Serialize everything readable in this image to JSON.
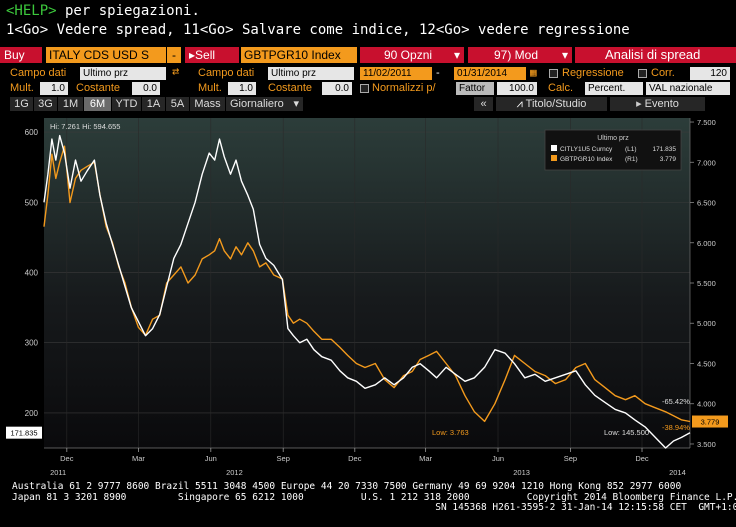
{
  "help": {
    "tag": "<HELP>",
    "text": " per spiegazioni."
  },
  "command_line": "1<Go> Vedere spread, 11<Go> Salvare come indice, 12<Go> vedere regressione",
  "toolbar": {
    "buy_label": "Buy",
    "security1": "ITALY CDS USD S",
    "minus_label": "-",
    "sell_label": "Sell",
    "security2": "GBTPGR10 Index",
    "options_label": "90 Opzni",
    "mod_label": "97) Mod",
    "analysis_label": "Analisi di spread"
  },
  "row1": {
    "campo_dati_label": "Campo dati",
    "campo_dati_value": "Ultimo prz",
    "swap_icon": "swap-arrows-icon",
    "campo_dati2_label": "Campo dati",
    "campo_dati2_value": "Ultimo prz",
    "start_date": "11/02/2011",
    "date_sep": "-",
    "end_date": "01/31/2014",
    "regressione_label": "Regressione",
    "corr_label": "Corr.",
    "corr_value": "120"
  },
  "row2": {
    "mult_label": "Mult.",
    "mult_value": "1.0",
    "costante_label": "Costante",
    "costante_value": "0.0",
    "mult2_label": "Mult.",
    "mult2_value": "1.0",
    "costante2_label": "Costante",
    "costante2_value": "0.0",
    "normalizzi_label": "Normalizzi p/",
    "fattor_label": "Fattor",
    "fattor_value": "100.0",
    "calc_label": "Calc.",
    "calc_value": "Percent.",
    "val_value": "VAL nazionale"
  },
  "tabs": [
    "1G",
    "3G",
    "1M",
    "6M",
    "YTD",
    "1A",
    "5A",
    "Mass",
    "Giornaliero"
  ],
  "active_tab": "6M",
  "toolbar2": {
    "back_label": "«",
    "titolo_label": "Titolo/Studio",
    "evento_label": "Evento"
  },
  "colors": {
    "cds": "#ffffff",
    "btp": "#f39a1d",
    "accent_red": "#c8102e",
    "background": "#000000"
  },
  "chart_data": {
    "type": "line",
    "x_range": [
      "2011-11-02",
      "2014-01-31"
    ],
    "ylim_left": [
      150,
      620
    ],
    "ylim_right": [
      3.45,
      7.55
    ],
    "left_ticks": [
      200,
      300,
      400,
      500,
      600
    ],
    "right_ticks": [
      3.5,
      4.0,
      4.5,
      5.0,
      5.5,
      6.0,
      6.5,
      7.0,
      7.5
    ],
    "right_tick_labels": [
      "3.500",
      "4.000",
      "4.500",
      "5.000",
      "5.500",
      "6.000",
      "6.500",
      "7.000",
      "7.500"
    ],
    "month_labels": [
      {
        "date": "2011-12-01",
        "label": "Dec"
      },
      {
        "date": "2012-03-01",
        "label": "Mar"
      },
      {
        "date": "2012-06-01",
        "label": "Jun"
      },
      {
        "date": "2012-09-01",
        "label": "Sep"
      },
      {
        "date": "2012-12-01",
        "label": "Dec"
      },
      {
        "date": "2013-03-01",
        "label": "Mar"
      },
      {
        "date": "2013-06-01",
        "label": "Jun"
      },
      {
        "date": "2013-09-01",
        "label": "Sep"
      },
      {
        "date": "2013-12-01",
        "label": "Dec"
      }
    ],
    "year_labels": [
      {
        "date": "2011-11-20",
        "label": "2011"
      },
      {
        "date": "2012-07-01",
        "label": "2012"
      },
      {
        "date": "2013-07-01",
        "label": "2013"
      },
      {
        "date": "2014-01-15",
        "label": "2014"
      }
    ],
    "legend": {
      "title": "Ultimo prz",
      "entries": [
        {
          "name": "CITLY1U5 Curncy",
          "axis": "(L1)",
          "last": "171.835"
        },
        {
          "name": "GBTPGR10 Index",
          "axis": "(R1)",
          "last": "3.779"
        }
      ]
    },
    "annotations": {
      "hi_text": "Hi: 7.261 Hi: 594.655",
      "low_cds": "Low: 145.500",
      "low_btp": "Low: 3.763",
      "pct_upper": "-65.42%",
      "pct_lower": "-38.94%",
      "last_left": "171.835",
      "last_right": "3.779"
    },
    "series": [
      {
        "name": "CITLY1U5 Curncy",
        "axis": "left",
        "points": [
          [
            "2011-11-02",
            500
          ],
          [
            "2011-11-07",
            540
          ],
          [
            "2011-11-12",
            590
          ],
          [
            "2011-11-17",
            560
          ],
          [
            "2011-11-22",
            595
          ],
          [
            "2011-11-28",
            570
          ],
          [
            "2011-12-05",
            520
          ],
          [
            "2011-12-12",
            560
          ],
          [
            "2011-12-19",
            530
          ],
          [
            "2011-12-27",
            545
          ],
          [
            "2012-01-05",
            560
          ],
          [
            "2012-01-12",
            510
          ],
          [
            "2012-01-20",
            470
          ],
          [
            "2012-01-28",
            440
          ],
          [
            "2012-02-05",
            410
          ],
          [
            "2012-02-13",
            380
          ],
          [
            "2012-02-21",
            350
          ],
          [
            "2012-03-01",
            330
          ],
          [
            "2012-03-10",
            310
          ],
          [
            "2012-03-19",
            320
          ],
          [
            "2012-03-28",
            340
          ],
          [
            "2012-04-06",
            380
          ],
          [
            "2012-04-15",
            420
          ],
          [
            "2012-04-24",
            440
          ],
          [
            "2012-05-03",
            470
          ],
          [
            "2012-05-12",
            500
          ],
          [
            "2012-05-21",
            540
          ],
          [
            "2012-05-30",
            570
          ],
          [
            "2012-06-06",
            560
          ],
          [
            "2012-06-12",
            590
          ],
          [
            "2012-06-18",
            565
          ],
          [
            "2012-06-26",
            540
          ],
          [
            "2012-07-03",
            560
          ],
          [
            "2012-07-10",
            530
          ],
          [
            "2012-07-18",
            510
          ],
          [
            "2012-07-25",
            490
          ],
          [
            "2012-08-02",
            440
          ],
          [
            "2012-08-10",
            420
          ],
          [
            "2012-08-20",
            410
          ],
          [
            "2012-08-31",
            390
          ],
          [
            "2012-09-07",
            320
          ],
          [
            "2012-09-14",
            310
          ],
          [
            "2012-09-22",
            300
          ],
          [
            "2012-10-01",
            305
          ],
          [
            "2012-10-10",
            290
          ],
          [
            "2012-10-20",
            280
          ],
          [
            "2012-11-01",
            275
          ],
          [
            "2012-11-12",
            260
          ],
          [
            "2012-11-22",
            250
          ],
          [
            "2012-12-03",
            245
          ],
          [
            "2012-12-14",
            235
          ],
          [
            "2012-12-27",
            240
          ],
          [
            "2013-01-08",
            250
          ],
          [
            "2013-01-20",
            240
          ],
          [
            "2013-02-01",
            250
          ],
          [
            "2013-02-12",
            265
          ],
          [
            "2013-02-22",
            270
          ],
          [
            "2013-03-05",
            260
          ],
          [
            "2013-03-15",
            250
          ],
          [
            "2013-03-27",
            265
          ],
          [
            "2013-04-08",
            255
          ],
          [
            "2013-04-20",
            245
          ],
          [
            "2013-05-02",
            250
          ],
          [
            "2013-05-15",
            265
          ],
          [
            "2013-05-28",
            290
          ],
          [
            "2013-06-10",
            285
          ],
          [
            "2013-06-22",
            270
          ],
          [
            "2013-07-05",
            250
          ],
          [
            "2013-07-18",
            255
          ],
          [
            "2013-07-31",
            245
          ],
          [
            "2013-08-13",
            250
          ],
          [
            "2013-08-26",
            255
          ],
          [
            "2013-09-08",
            260
          ],
          [
            "2013-09-20",
            240
          ],
          [
            "2013-10-02",
            225
          ],
          [
            "2013-10-15",
            215
          ],
          [
            "2013-10-28",
            205
          ],
          [
            "2013-11-10",
            200
          ],
          [
            "2013-11-22",
            190
          ],
          [
            "2013-12-05",
            180
          ],
          [
            "2013-12-18",
            165
          ],
          [
            "2013-12-31",
            150
          ],
          [
            "2014-01-10",
            160
          ],
          [
            "2014-01-20",
            165
          ],
          [
            "2014-01-31",
            171.835
          ]
        ]
      },
      {
        "name": "GBTPGR10 Index",
        "axis": "right",
        "points": [
          [
            "2011-11-02",
            6.2
          ],
          [
            "2011-11-07",
            6.6
          ],
          [
            "2011-11-12",
            7.1
          ],
          [
            "2011-11-17",
            6.8
          ],
          [
            "2011-11-22",
            7.0
          ],
          [
            "2011-11-28",
            7.2
          ],
          [
            "2011-12-05",
            6.5
          ],
          [
            "2011-12-12",
            6.8
          ],
          [
            "2011-12-19",
            6.9
          ],
          [
            "2011-12-27",
            6.95
          ],
          [
            "2012-01-05",
            7.0
          ],
          [
            "2012-01-12",
            6.6
          ],
          [
            "2012-01-20",
            6.2
          ],
          [
            "2012-01-28",
            6.0
          ],
          [
            "2012-02-05",
            5.7
          ],
          [
            "2012-02-13",
            5.5
          ],
          [
            "2012-02-21",
            5.2
          ],
          [
            "2012-03-01",
            4.95
          ],
          [
            "2012-03-10",
            4.85
          ],
          [
            "2012-03-19",
            5.05
          ],
          [
            "2012-03-28",
            5.1
          ],
          [
            "2012-04-06",
            5.5
          ],
          [
            "2012-04-15",
            5.6
          ],
          [
            "2012-04-24",
            5.7
          ],
          [
            "2012-05-03",
            5.5
          ],
          [
            "2012-05-12",
            5.6
          ],
          [
            "2012-05-21",
            5.8
          ],
          [
            "2012-05-30",
            5.85
          ],
          [
            "2012-06-06",
            5.9
          ],
          [
            "2012-06-12",
            6.05
          ],
          [
            "2012-06-18",
            5.9
          ],
          [
            "2012-06-26",
            5.8
          ],
          [
            "2012-07-03",
            5.95
          ],
          [
            "2012-07-10",
            5.85
          ],
          [
            "2012-07-18",
            6.0
          ],
          [
            "2012-07-25",
            5.9
          ],
          [
            "2012-08-02",
            5.7
          ],
          [
            "2012-08-10",
            5.75
          ],
          [
            "2012-08-20",
            5.6
          ],
          [
            "2012-08-31",
            5.55
          ],
          [
            "2012-09-07",
            5.1
          ],
          [
            "2012-09-14",
            5.0
          ],
          [
            "2012-09-22",
            5.05
          ],
          [
            "2012-10-01",
            5.0
          ],
          [
            "2012-10-10",
            4.9
          ],
          [
            "2012-10-20",
            4.8
          ],
          [
            "2012-11-01",
            4.8
          ],
          [
            "2012-11-12",
            4.7
          ],
          [
            "2012-11-22",
            4.6
          ],
          [
            "2012-12-03",
            4.5
          ],
          [
            "2012-12-14",
            4.45
          ],
          [
            "2012-12-27",
            4.5
          ],
          [
            "2013-01-08",
            4.3
          ],
          [
            "2013-01-20",
            4.2
          ],
          [
            "2013-02-01",
            4.35
          ],
          [
            "2013-02-12",
            4.4
          ],
          [
            "2013-02-22",
            4.55
          ],
          [
            "2013-03-05",
            4.6
          ],
          [
            "2013-03-15",
            4.65
          ],
          [
            "2013-03-27",
            4.5
          ],
          [
            "2013-04-08",
            4.35
          ],
          [
            "2013-04-20",
            4.1
          ],
          [
            "2013-05-02",
            3.9
          ],
          [
            "2013-05-15",
            3.78
          ],
          [
            "2013-05-28",
            4.0
          ],
          [
            "2013-06-10",
            4.3
          ],
          [
            "2013-06-22",
            4.6
          ],
          [
            "2013-07-05",
            4.5
          ],
          [
            "2013-07-18",
            4.4
          ],
          [
            "2013-07-31",
            4.35
          ],
          [
            "2013-08-13",
            4.25
          ],
          [
            "2013-08-26",
            4.3
          ],
          [
            "2013-09-08",
            4.45
          ],
          [
            "2013-09-20",
            4.5
          ],
          [
            "2013-10-02",
            4.3
          ],
          [
            "2013-10-15",
            4.2
          ],
          [
            "2013-10-28",
            4.1
          ],
          [
            "2013-11-10",
            4.05
          ],
          [
            "2013-11-22",
            4.1
          ],
          [
            "2013-12-05",
            4.0
          ],
          [
            "2013-12-18",
            3.95
          ],
          [
            "2013-12-31",
            3.9
          ],
          [
            "2014-01-10",
            3.85
          ],
          [
            "2014-01-20",
            3.8
          ],
          [
            "2014-01-31",
            3.779
          ]
        ]
      }
    ]
  },
  "footer": {
    "line1": "Australia 61 2 9777 8600 Brazil 5511 3048 4500 Europe 44 20 7330 7500 Germany 49 69 9204 1210 Hong Kong 852 2977 6000",
    "line2": "Japan 81 3 3201 8900         Singapore 65 6212 1000          U.S. 1 212 318 2000          Copyright 2014 Bloomberg Finance L.P.",
    "line3": "                                                                          SN 145368 H261-3595-2 31-Jan-14 12:15:58 CET  GMT+1:00"
  }
}
